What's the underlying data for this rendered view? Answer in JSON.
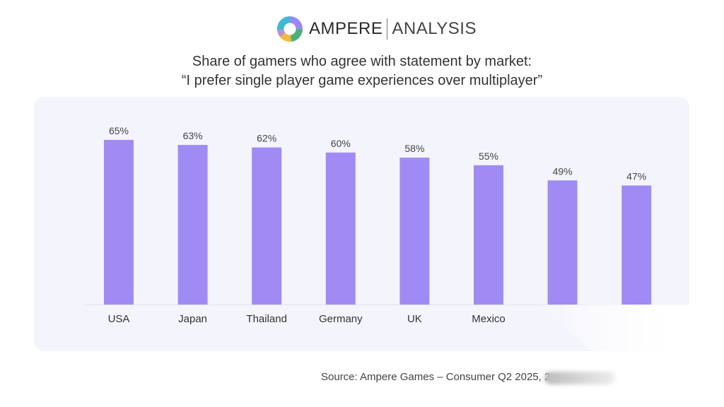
{
  "logo": {
    "brand_primary": "AMPERE",
    "brand_secondary": "ANALYSIS"
  },
  "title_line1": "Share of gamers who agree with statement by market:",
  "title_line2": "“I prefer single player game experiences over multiplayer”",
  "source": "Source: Ampere Games – Consumer Q2 2025, 2",
  "chart_data": {
    "type": "bar",
    "title": "Share of gamers who agree with statement by market: “I prefer single player game experiences over multiplayer”",
    "categories": [
      "USA",
      "Japan",
      "Thailand",
      "Germany",
      "UK",
      "Mexico",
      "",
      ""
    ],
    "values": [
      65,
      63,
      62,
      60,
      58,
      55,
      49,
      47
    ],
    "value_labels": [
      "65%",
      "63%",
      "62%",
      "60%",
      "58%",
      "55%",
      "49%",
      "47%"
    ],
    "unit": "%",
    "ylim": [
      0,
      100
    ],
    "xlabel": "",
    "ylabel": "",
    "grid": false,
    "bar_color": "#a08bf4"
  }
}
